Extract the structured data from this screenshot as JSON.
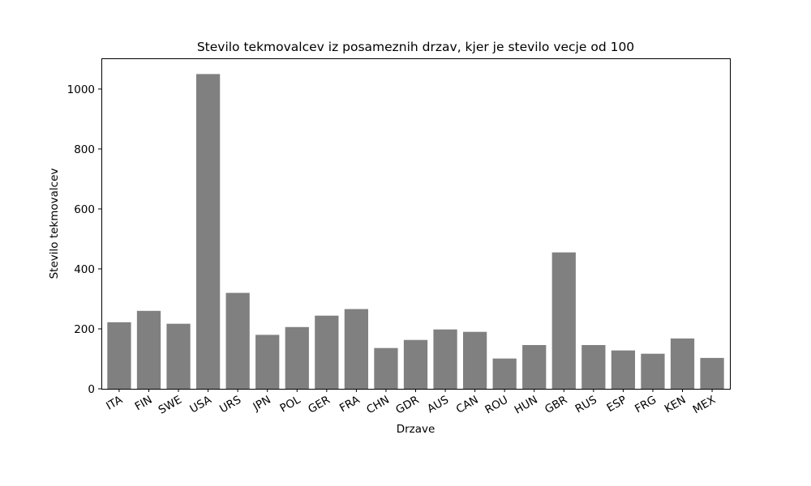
{
  "chart_data": {
    "type": "bar",
    "title": "Stevilo tekmovalcev iz posameznih drzav, kjer je stevilo vecje od 100",
    "xlabel": "Drzave",
    "ylabel": "Stevilo tekmovalcev",
    "categories": [
      "ITA",
      "FIN",
      "SWE",
      "USA",
      "URS",
      "JPN",
      "POL",
      "GER",
      "FRA",
      "CHN",
      "GDR",
      "AUS",
      "CAN",
      "ROU",
      "HUN",
      "GBR",
      "RUS",
      "ESP",
      "FRG",
      "KEN",
      "MEX"
    ],
    "values": [
      222,
      260,
      217,
      1050,
      320,
      180,
      206,
      244,
      266,
      136,
      163,
      198,
      190,
      101,
      146,
      455,
      146,
      128,
      117,
      168,
      103
    ],
    "yticks": [
      0,
      200,
      400,
      600,
      800,
      1000
    ],
    "ylim": [
      0,
      1102.5
    ],
    "grid": false,
    "bar_color": "#808080"
  }
}
